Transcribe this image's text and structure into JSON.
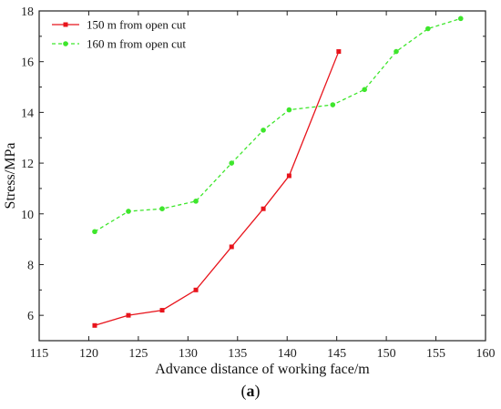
{
  "chart_data": {
    "type": "line",
    "title": "",
    "xlabel": "Advance distance of working face/m",
    "ylabel": "Stress/MPa",
    "xlim": [
      115,
      160
    ],
    "ylim": [
      5,
      18
    ],
    "xticks": [
      "115",
      "120",
      "125",
      "130",
      "135",
      "140",
      "145",
      "150",
      "155",
      "160"
    ],
    "yticks": [
      "6",
      "8",
      "10",
      "12",
      "14",
      "16",
      "18"
    ],
    "grid": false,
    "legend_position": "top-left",
    "series": [
      {
        "name": "150 m from open cut",
        "color": "#e8141c",
        "line_style": "solid",
        "marker": "square",
        "x": [
          120.6,
          124.0,
          127.4,
          130.8,
          134.4,
          137.6,
          140.2,
          145.2
        ],
        "y": [
          5.6,
          6.0,
          6.2,
          7.0,
          8.7,
          10.2,
          11.5,
          16.4
        ]
      },
      {
        "name": "160 m from open cut",
        "color": "#3ee62c",
        "line_style": "dashed",
        "marker": "circle",
        "x": [
          120.6,
          124.0,
          127.4,
          130.8,
          134.4,
          137.6,
          140.2,
          144.6,
          147.8,
          151.0,
          154.2,
          157.5
        ],
        "y": [
          9.3,
          10.1,
          10.2,
          10.5,
          12.0,
          13.3,
          14.1,
          14.3,
          14.9,
          16.4,
          17.3,
          17.7
        ]
      }
    ]
  },
  "caption": {
    "open": "(",
    "letter": "a",
    "close": ")"
  }
}
